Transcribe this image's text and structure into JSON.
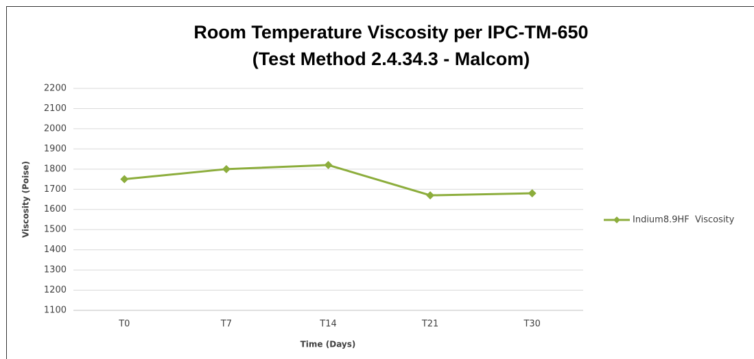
{
  "chart_data": {
    "type": "line",
    "title": "Room Temperature Viscosity per IPC-TM-650",
    "subtitle": "(Test Method 2.4.34.3 - Malcom)",
    "x_label": "Time (Days)",
    "y_label": "Viscosity (Poise)",
    "categories": [
      "T0",
      "T7",
      "T14",
      "T21",
      "T30"
    ],
    "series": [
      {
        "name": "Indium8.9HF  Viscosity",
        "color": "#8cad3c",
        "values": [
          1750,
          1800,
          1820,
          1670,
          1680
        ]
      }
    ],
    "ylim": [
      1100,
      2200
    ],
    "yticks": [
      1100,
      1200,
      1300,
      1400,
      1500,
      1600,
      1700,
      1800,
      1900,
      2000,
      2100,
      2200
    ],
    "grid": true,
    "legend": "right"
  }
}
